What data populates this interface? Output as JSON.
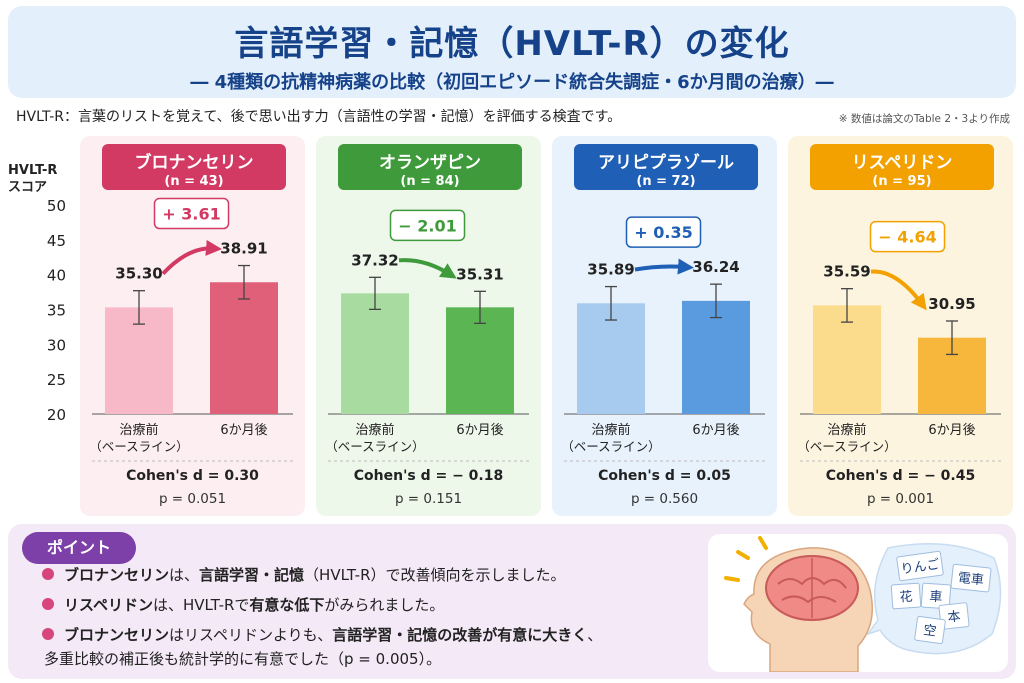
{
  "header": {
    "title": "言語学習・記憶（HVLT-R）の変化",
    "subtitle": "― 4種類の抗精神病薬の比較（初回エピソード統合失調症・6か月間の治療）―",
    "description": "HVLT-R：言葉のリストを覚えて、後で思い出す力（言語性の学習・記憶）を評価する検査です。",
    "source_note": "※ 数値は論文のTable 2・3より作成"
  },
  "axis": {
    "ylabel_line1": "HVLT-R",
    "ylabel_line2": "スコア"
  },
  "chart_data": {
    "type": "bar",
    "ylabel": "HVLT-R スコア",
    "ylim": [
      20,
      50
    ],
    "yticks": [
      50,
      45,
      40,
      35,
      30,
      25,
      20
    ],
    "grid": false,
    "categories": [
      "治療前（ベースライン）",
      "6か月後"
    ],
    "groups": [
      {
        "name": "ブロナンセリン",
        "n_label": "(n = 43)",
        "color": "#d23a64",
        "light": "#f7b8c7",
        "dark": "#e06079",
        "bg": "#fdeef1",
        "values": [
          35.3,
          38.91
        ],
        "values_label": [
          "35.30",
          "38.91"
        ],
        "err": [
          2.4,
          2.4
        ],
        "change_label": "+ 3.61",
        "cohen": "Cohen's d = 0.30",
        "p": "p = 0.051"
      },
      {
        "name": "オランザピン",
        "n_label": "(n = 84)",
        "color": "#3e9a3a",
        "light": "#a8dba0",
        "dark": "#5bb552",
        "bg": "#edf7ea",
        "values": [
          37.32,
          35.31
        ],
        "values_label": [
          "37.32",
          "35.31"
        ],
        "err": [
          2.3,
          2.3
        ],
        "change_label": "− 2.01",
        "cohen": "Cohen's d = − 0.18",
        "p": "p = 0.151"
      },
      {
        "name": "アリピプラゾール",
        "n_label": "(n = 72)",
        "color": "#1f5fb5",
        "light": "#a6cbef",
        "dark": "#5a9be0",
        "bg": "#e8f2fc",
        "values": [
          35.89,
          36.24
        ],
        "values_label": [
          "35.89",
          "36.24"
        ],
        "err": [
          2.4,
          2.4
        ],
        "change_label": "+ 0.35",
        "cohen": "Cohen's d = 0.05",
        "p": "p = 0.560"
      },
      {
        "name": "リスペリドン",
        "n_label": "(n = 95)",
        "color": "#f2a100",
        "light": "#fbdc8c",
        "dark": "#f6b73c",
        "bg": "#fdf4e0",
        "values": [
          35.59,
          30.95
        ],
        "values_label": [
          "35.59",
          "30.95"
        ],
        "err": [
          2.4,
          2.4
        ],
        "change_label": "− 4.64",
        "cohen": "Cohen's d = − 0.45",
        "p": "p = 0.001"
      }
    ],
    "xtick_labels": [
      [
        "治療前",
        "（ベースライン）"
      ],
      [
        "6か月後"
      ]
    ]
  },
  "points": {
    "badge": "ポイント",
    "item1_bold1": "ブロナンセリン",
    "item1_rest1": "は、",
    "item1_bold2": "言語学習・記憶",
    "item1_rest2": "（HVLT-R）で改善傾向を示しました。",
    "item2_bold1": "リスペリドン",
    "item2_rest1": "は、HVLT-Rで",
    "item2_bold2": "有意な低下",
    "item2_rest2": "がみられました。",
    "item3_bold1": "ブロナンセリン",
    "item3_rest1": "はリスペリドンよりも、",
    "item3_bold2": "言語学習・記憶の改善が有意に大きく",
    "item3_rest2": "、",
    "item3_line2": "多重比較の補正後も統計学的に有意でした（p = 0.005）。"
  },
  "illustration": {
    "word_cards": [
      "りんご",
      "電車",
      "花",
      "車",
      "本",
      "空"
    ]
  }
}
